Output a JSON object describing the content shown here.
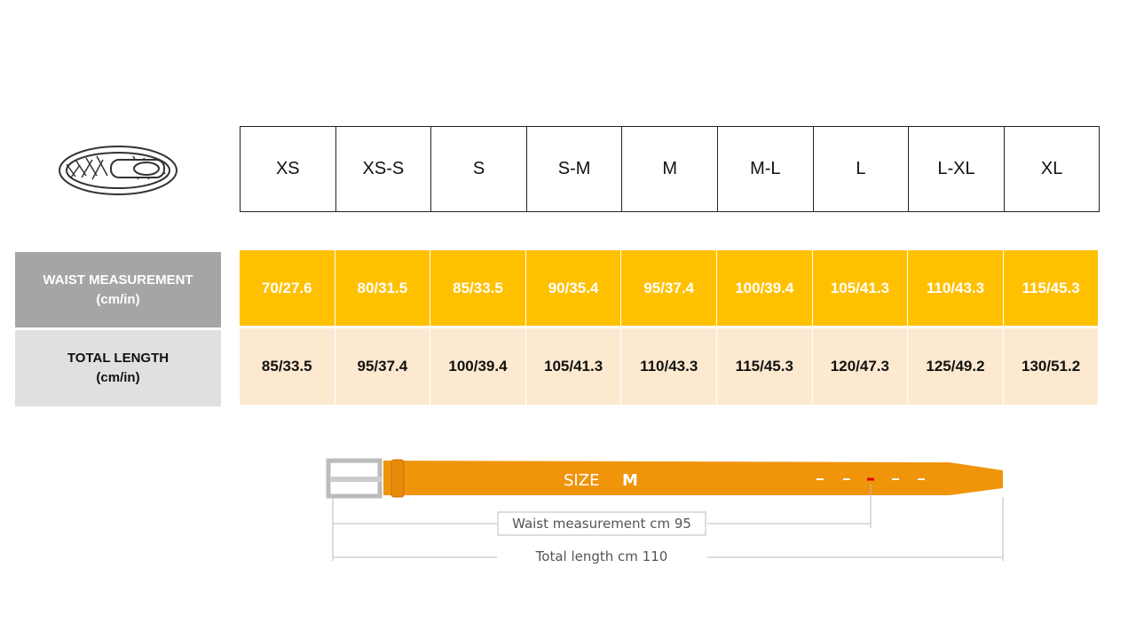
{
  "sizes": [
    "XS",
    "XS-S",
    "S",
    "S-M",
    "M",
    "M-L",
    "L",
    "L-XL",
    "XL"
  ],
  "rows": [
    {
      "label": "WAIST MEASUREMENT",
      "unit": "(cm/in)",
      "values": [
        "70/27.6",
        "80/31.5",
        "85/33.5",
        "90/35.4",
        "95/37.4",
        "100/39.4",
        "105/41.3",
        "110/43.3",
        "115/45.3"
      ]
    },
    {
      "label": "TOTAL LENGTH",
      "unit": "(cm/in)",
      "values": [
        "85/33.5",
        "95/37.4",
        "100/39.4",
        "105/41.3",
        "110/43.3",
        "115/45.3",
        "120/47.3",
        "125/49.2",
        "130/51.2"
      ]
    }
  ],
  "diagram": {
    "size_label": "SIZE",
    "size": "M",
    "waist_note": "Waist measurement cm 95",
    "length_note": "Total length cm 110"
  }
}
